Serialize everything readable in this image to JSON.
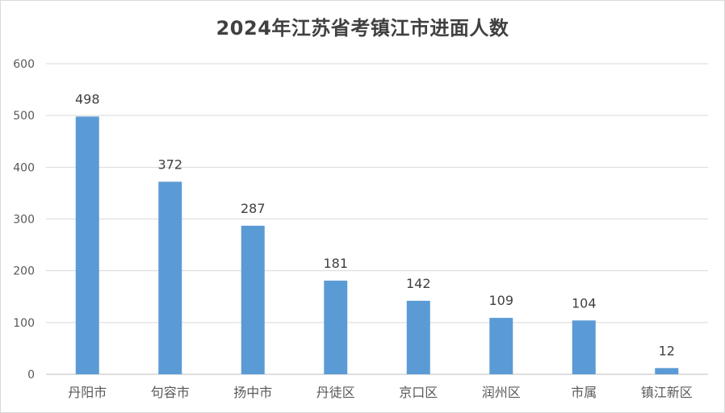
{
  "chart_data": {
    "type": "bar",
    "title": "2024年江苏省考镇江市进面人数",
    "categories": [
      "丹阳市",
      "句容市",
      "扬中市",
      "丹徒区",
      "京口区",
      "润州区",
      "市属",
      "镇江新区"
    ],
    "values": [
      498,
      372,
      287,
      181,
      142,
      109,
      104,
      12
    ],
    "ylim": [
      0,
      600
    ],
    "yticks": [
      0,
      100,
      200,
      300,
      400,
      500,
      600
    ],
    "grid": true,
    "bar_color": "#5b9bd5",
    "data_labels": true
  }
}
